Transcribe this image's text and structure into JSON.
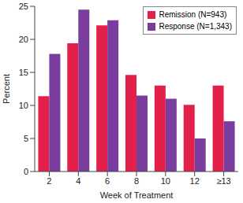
{
  "chart_data": {
    "type": "bar",
    "x_label": "Week of Treatment",
    "y_label": "Percent",
    "categories": [
      "2",
      "4",
      "6",
      "8",
      "10",
      "12",
      "≥13"
    ],
    "series": [
      {
        "name": "Remission (N=943)",
        "color": "#e3204a",
        "values": [
          11.4,
          19.4,
          22.1,
          14.6,
          13.0,
          10.1,
          13.0
        ]
      },
      {
        "name": "Response (N=1,343)",
        "color": "#7a3d9e",
        "values": [
          17.8,
          24.5,
          22.9,
          11.5,
          11.0,
          5.0,
          7.6
        ]
      }
    ],
    "ylim": [
      0,
      25
    ],
    "yticks": [
      0,
      5,
      10,
      15,
      20,
      25
    ],
    "grid": false,
    "legend": "upper right"
  }
}
